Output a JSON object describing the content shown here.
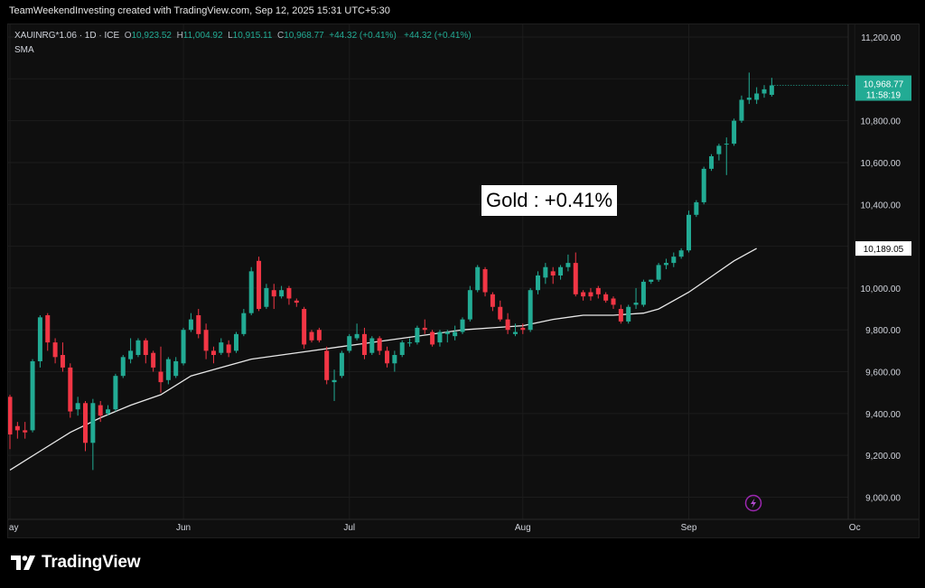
{
  "header": {
    "credit": "TeamWeekendInvesting created with TradingView.com, Sep 12, 2025 15:31 UTC+5:30"
  },
  "legend": {
    "symbol": "XAUINRG*1.06 · 1D · ICE",
    "o_label": "O",
    "o_value": "10,923.52",
    "h_label": "H",
    "h_value": "11,004.92",
    "l_label": "L",
    "l_value": "10,915.11",
    "c_label": "C",
    "c_value": "10,968.77",
    "change1": "+44.32 (+0.41%)",
    "change2": "+44.32 (+0.41%)",
    "indicator": "SMA"
  },
  "annotation": "Gold : +0.41%",
  "footer": {
    "brand": "TradingView"
  },
  "colors": {
    "up": "#22ab94",
    "down": "#f23645",
    "sma": "#e8e8e8",
    "background": "#0f0f0f",
    "grid": "#1c1c1c"
  },
  "icons": {
    "footer_logo": "tradingview-logo-icon",
    "flash": "lightning-icon"
  },
  "chart_data": {
    "type": "candlestick",
    "title": "",
    "grid": true,
    "y_axis": {
      "range": [
        8960,
        11200
      ],
      "ticks": [
        9000,
        9200,
        9400,
        9600,
        9800,
        10000,
        10200,
        10400,
        10600,
        10800,
        11000,
        11200
      ],
      "tick_labels": [
        "9,000.00",
        "9,200.00",
        "9,400.00",
        "9,600.00",
        "9,800.00",
        "10,000.00",
        "10,200.00",
        "10,400.00",
        "10,600.00",
        "10,800.00",
        "11,000.00",
        "11,200.00"
      ]
    },
    "x_axis": {
      "labels": [
        {
          "text": "May",
          "bar": 0
        },
        {
          "text": "Jun",
          "bar": 23
        },
        {
          "text": "Jul",
          "bar": 45
        },
        {
          "text": "Aug",
          "bar": 68
        },
        {
          "text": "Sep",
          "bar": 90
        },
        {
          "text": "Oc",
          "bar": 112
        }
      ]
    },
    "price_markers": [
      {
        "value": 10968.77,
        "label": "10,968.77",
        "sublabel": "11:58:19",
        "style": "last-price"
      },
      {
        "value": 10189.05,
        "label": "10,189.05",
        "style": "sma"
      }
    ],
    "candles": [
      {
        "o": 9480,
        "h": 9490,
        "l": 9230,
        "c": 9300
      },
      {
        "o": 9340,
        "h": 9360,
        "l": 9280,
        "c": 9320
      },
      {
        "o": 9320,
        "h": 9360,
        "l": 9280,
        "c": 9310
      },
      {
        "o": 9320,
        "h": 9660,
        "l": 9310,
        "c": 9650
      },
      {
        "o": 9650,
        "h": 9870,
        "l": 9620,
        "c": 9860
      },
      {
        "o": 9870,
        "h": 9880,
        "l": 9700,
        "c": 9740
      },
      {
        "o": 9740,
        "h": 9760,
        "l": 9640,
        "c": 9670
      },
      {
        "o": 9680,
        "h": 9740,
        "l": 9600,
        "c": 9620
      },
      {
        "o": 9620,
        "h": 9640,
        "l": 9380,
        "c": 9410
      },
      {
        "o": 9420,
        "h": 9480,
        "l": 9390,
        "c": 9450
      },
      {
        "o": 9450,
        "h": 9460,
        "l": 9220,
        "c": 9260
      },
      {
        "o": 9260,
        "h": 9470,
        "l": 9130,
        "c": 9450
      },
      {
        "o": 9440,
        "h": 9460,
        "l": 9360,
        "c": 9390
      },
      {
        "o": 9400,
        "h": 9440,
        "l": 9390,
        "c": 9420
      },
      {
        "o": 9420,
        "h": 9590,
        "l": 9410,
        "c": 9580
      },
      {
        "o": 9580,
        "h": 9680,
        "l": 9570,
        "c": 9670
      },
      {
        "o": 9660,
        "h": 9760,
        "l": 9640,
        "c": 9700
      },
      {
        "o": 9680,
        "h": 9760,
        "l": 9670,
        "c": 9750
      },
      {
        "o": 9750,
        "h": 9760,
        "l": 9640,
        "c": 9680
      },
      {
        "o": 9690,
        "h": 9700,
        "l": 9600,
        "c": 9620
      },
      {
        "o": 9600,
        "h": 9720,
        "l": 9500,
        "c": 9550
      },
      {
        "o": 9560,
        "h": 9670,
        "l": 9540,
        "c": 9660
      },
      {
        "o": 9580,
        "h": 9670,
        "l": 9570,
        "c": 9650
      },
      {
        "o": 9640,
        "h": 9810,
        "l": 9630,
        "c": 9800
      },
      {
        "o": 9800,
        "h": 9880,
        "l": 9790,
        "c": 9850
      },
      {
        "o": 9870,
        "h": 9900,
        "l": 9760,
        "c": 9780
      },
      {
        "o": 9800,
        "h": 9830,
        "l": 9660,
        "c": 9700
      },
      {
        "o": 9700,
        "h": 9720,
        "l": 9640,
        "c": 9680
      },
      {
        "o": 9690,
        "h": 9760,
        "l": 9680,
        "c": 9740
      },
      {
        "o": 9730,
        "h": 9750,
        "l": 9670,
        "c": 9690
      },
      {
        "o": 9700,
        "h": 9790,
        "l": 9690,
        "c": 9780
      },
      {
        "o": 9780,
        "h": 9900,
        "l": 9770,
        "c": 9880
      },
      {
        "o": 9880,
        "h": 10100,
        "l": 9870,
        "c": 10080
      },
      {
        "o": 10130,
        "h": 10150,
        "l": 9890,
        "c": 9900
      },
      {
        "o": 9910,
        "h": 10020,
        "l": 9900,
        "c": 10000
      },
      {
        "o": 9990,
        "h": 10020,
        "l": 9900,
        "c": 9960
      },
      {
        "o": 9960,
        "h": 10010,
        "l": 9950,
        "c": 9990
      },
      {
        "o": 10000,
        "h": 10010,
        "l": 9920,
        "c": 9950
      },
      {
        "o": 9940,
        "h": 9950,
        "l": 9910,
        "c": 9930
      },
      {
        "o": 9900,
        "h": 9910,
        "l": 9710,
        "c": 9730
      },
      {
        "o": 9790,
        "h": 9800,
        "l": 9740,
        "c": 9750
      },
      {
        "o": 9800,
        "h": 9810,
        "l": 9740,
        "c": 9750
      },
      {
        "o": 9700,
        "h": 9720,
        "l": 9540,
        "c": 9560
      },
      {
        "o": 9550,
        "h": 9610,
        "l": 9460,
        "c": 9560
      },
      {
        "o": 9580,
        "h": 9700,
        "l": 9570,
        "c": 9690
      },
      {
        "o": 9700,
        "h": 9780,
        "l": 9690,
        "c": 9770
      },
      {
        "o": 9760,
        "h": 9830,
        "l": 9750,
        "c": 9780
      },
      {
        "o": 9780,
        "h": 9810,
        "l": 9660,
        "c": 9680
      },
      {
        "o": 9690,
        "h": 9770,
        "l": 9680,
        "c": 9760
      },
      {
        "o": 9760,
        "h": 9770,
        "l": 9680,
        "c": 9700
      },
      {
        "o": 9700,
        "h": 9720,
        "l": 9620,
        "c": 9640
      },
      {
        "o": 9640,
        "h": 9700,
        "l": 9600,
        "c": 9680
      },
      {
        "o": 9680,
        "h": 9750,
        "l": 9670,
        "c": 9740
      },
      {
        "o": 9740,
        "h": 9760,
        "l": 9720,
        "c": 9740
      },
      {
        "o": 9740,
        "h": 9820,
        "l": 9730,
        "c": 9810
      },
      {
        "o": 9810,
        "h": 9850,
        "l": 9780,
        "c": 9800
      },
      {
        "o": 9790,
        "h": 9800,
        "l": 9720,
        "c": 9730
      },
      {
        "o": 9740,
        "h": 9800,
        "l": 9720,
        "c": 9790
      },
      {
        "o": 9780,
        "h": 9800,
        "l": 9740,
        "c": 9790
      },
      {
        "o": 9770,
        "h": 9820,
        "l": 9750,
        "c": 9790
      },
      {
        "o": 9790,
        "h": 9860,
        "l": 9780,
        "c": 9850
      },
      {
        "o": 9850,
        "h": 10010,
        "l": 9840,
        "c": 9990
      },
      {
        "o": 9990,
        "h": 10110,
        "l": 9980,
        "c": 10100
      },
      {
        "o": 10090,
        "h": 10100,
        "l": 9960,
        "c": 9980
      },
      {
        "o": 9970,
        "h": 9980,
        "l": 9890,
        "c": 9910
      },
      {
        "o": 9910,
        "h": 9940,
        "l": 9840,
        "c": 9850
      },
      {
        "o": 9850,
        "h": 9880,
        "l": 9780,
        "c": 9800
      },
      {
        "o": 9780,
        "h": 9830,
        "l": 9770,
        "c": 9790
      },
      {
        "o": 9810,
        "h": 9830,
        "l": 9780,
        "c": 9800
      },
      {
        "o": 9800,
        "h": 10000,
        "l": 9790,
        "c": 9990
      },
      {
        "o": 9990,
        "h": 10080,
        "l": 9970,
        "c": 10060
      },
      {
        "o": 10050,
        "h": 10120,
        "l": 10020,
        "c": 10100
      },
      {
        "o": 10080,
        "h": 10100,
        "l": 10020,
        "c": 10060
      },
      {
        "o": 10060,
        "h": 10110,
        "l": 10040,
        "c": 10100
      },
      {
        "o": 10100,
        "h": 10160,
        "l": 10080,
        "c": 10120
      },
      {
        "o": 10120,
        "h": 10170,
        "l": 9960,
        "c": 9970
      },
      {
        "o": 9980,
        "h": 9990,
        "l": 9940,
        "c": 9960
      },
      {
        "o": 9980,
        "h": 10000,
        "l": 9940,
        "c": 9960
      },
      {
        "o": 10000,
        "h": 10010,
        "l": 9950,
        "c": 9970
      },
      {
        "o": 9970,
        "h": 9980,
        "l": 9930,
        "c": 9940
      },
      {
        "o": 9950,
        "h": 9960,
        "l": 9900,
        "c": 9920
      },
      {
        "o": 9900,
        "h": 9920,
        "l": 9830,
        "c": 9840
      },
      {
        "o": 9840,
        "h": 9920,
        "l": 9830,
        "c": 9910
      },
      {
        "o": 9920,
        "h": 10000,
        "l": 9900,
        "c": 9930
      },
      {
        "o": 9920,
        "h": 10040,
        "l": 9910,
        "c": 10030
      },
      {
        "o": 10030,
        "h": 10040,
        "l": 10020,
        "c": 10040
      },
      {
        "o": 10040,
        "h": 10120,
        "l": 10030,
        "c": 10110
      },
      {
        "o": 10110,
        "h": 10140,
        "l": 10090,
        "c": 10120
      },
      {
        "o": 10120,
        "h": 10170,
        "l": 10100,
        "c": 10150
      },
      {
        "o": 10150,
        "h": 10190,
        "l": 10140,
        "c": 10180
      },
      {
        "o": 10180,
        "h": 10370,
        "l": 10170,
        "c": 10350
      },
      {
        "o": 10350,
        "h": 10420,
        "l": 10340,
        "c": 10410
      },
      {
        "o": 10410,
        "h": 10580,
        "l": 10400,
        "c": 10570
      },
      {
        "o": 10570,
        "h": 10640,
        "l": 10560,
        "c": 10630
      },
      {
        "o": 10640,
        "h": 10690,
        "l": 10610,
        "c": 10680
      },
      {
        "o": 10690,
        "h": 10720,
        "l": 10540,
        "c": 10690
      },
      {
        "o": 10690,
        "h": 10810,
        "l": 10680,
        "c": 10800
      },
      {
        "o": 10800,
        "h": 10920,
        "l": 10790,
        "c": 10900
      },
      {
        "o": 10900,
        "h": 11030,
        "l": 10880,
        "c": 10910
      },
      {
        "o": 10900,
        "h": 10960,
        "l": 10880,
        "c": 10930
      },
      {
        "o": 10930,
        "h": 10970,
        "l": 10910,
        "c": 10950
      },
      {
        "o": 10923.52,
        "h": 11004.92,
        "l": 10915.11,
        "c": 10968.77
      }
    ],
    "sma": [
      {
        "bar": 0,
        "value": 9130
      },
      {
        "bar": 4,
        "value": 9220
      },
      {
        "bar": 8,
        "value": 9310
      },
      {
        "bar": 12,
        "value": 9380
      },
      {
        "bar": 16,
        "value": 9440
      },
      {
        "bar": 20,
        "value": 9490
      },
      {
        "bar": 24,
        "value": 9580
      },
      {
        "bar": 28,
        "value": 9620
      },
      {
        "bar": 32,
        "value": 9660
      },
      {
        "bar": 36,
        "value": 9680
      },
      {
        "bar": 40,
        "value": 9700
      },
      {
        "bar": 44,
        "value": 9720
      },
      {
        "bar": 48,
        "value": 9740
      },
      {
        "bar": 52,
        "value": 9760
      },
      {
        "bar": 56,
        "value": 9780
      },
      {
        "bar": 60,
        "value": 9800
      },
      {
        "bar": 64,
        "value": 9810
      },
      {
        "bar": 68,
        "value": 9820
      },
      {
        "bar": 72,
        "value": 9850
      },
      {
        "bar": 76,
        "value": 9870
      },
      {
        "bar": 80,
        "value": 9870
      },
      {
        "bar": 84,
        "value": 9880
      },
      {
        "bar": 86,
        "value": 9900
      },
      {
        "bar": 88,
        "value": 9940
      },
      {
        "bar": 90,
        "value": 9980
      },
      {
        "bar": 92,
        "value": 10030
      },
      {
        "bar": 94,
        "value": 10080
      },
      {
        "bar": 96,
        "value": 10130
      },
      {
        "bar": 99,
        "value": 10189.05
      }
    ]
  }
}
